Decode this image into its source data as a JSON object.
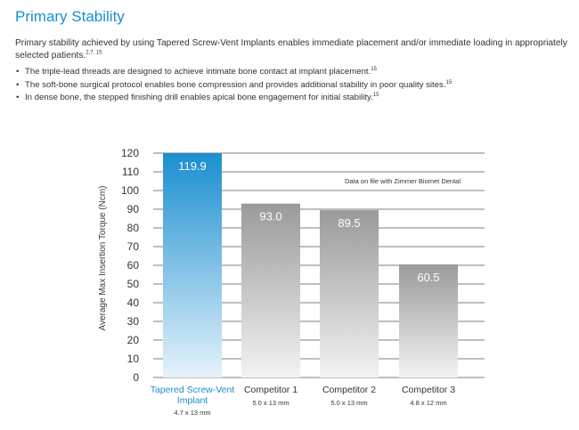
{
  "header": {
    "title": "Primary Stability",
    "intro_text": "Primary stability achieved by using Tapered Screw-Vent Implants enables immediate placement and/or immediate loading in appropriately selected patients.",
    "intro_sup": "2,7, 15"
  },
  "bullets": [
    {
      "text": "The triple-lead threads are designed to achieve intimate bone contact at implant placement.",
      "sup": "15"
    },
    {
      "text": "The soft-bone surgical protocol enables bone compression and provides additional stability in poor quality sites.",
      "sup": "15"
    },
    {
      "text": "In dense bone, the stepped finishing drill enables apical bone engagement for initial stability.",
      "sup": "15"
    }
  ],
  "chart_data": {
    "type": "bar",
    "title": "",
    "ylabel": "Average Max Insertion Torque (Ncm)",
    "xlabel": "",
    "ylim": [
      0,
      120
    ],
    "yticks": [
      0,
      10,
      20,
      30,
      40,
      50,
      60,
      70,
      80,
      90,
      100,
      110,
      120
    ],
    "grid": true,
    "annotation": "Data on file with Zimmer Biomet Dental",
    "data_labels": [
      "119.9",
      "93.0",
      "89.5",
      "60.5"
    ],
    "categories": [
      {
        "lines": [
          "Tapered Screw-Vent",
          "Implant"
        ],
        "sub": "4.7 x 13 mm"
      },
      {
        "lines": [
          "Competitor 1"
        ],
        "sub": "5.0 x 13 mm"
      },
      {
        "lines": [
          "Competitor 2"
        ],
        "sub": "5.0 x 13 mm"
      },
      {
        "lines": [
          "Competitor 3"
        ],
        "sub": "4.8 x 12 mm"
      }
    ],
    "values": [
      119.9,
      93.0,
      89.5,
      60.5
    ],
    "colors": {
      "highlight_top": "#1a8fd0",
      "highlight_bottom": "#e6f2fb",
      "gray_top": "#9a9a9a",
      "gray_bottom": "#f3f3f3",
      "highlight_text": "#1a8fd0",
      "grid": "#555555"
    }
  }
}
